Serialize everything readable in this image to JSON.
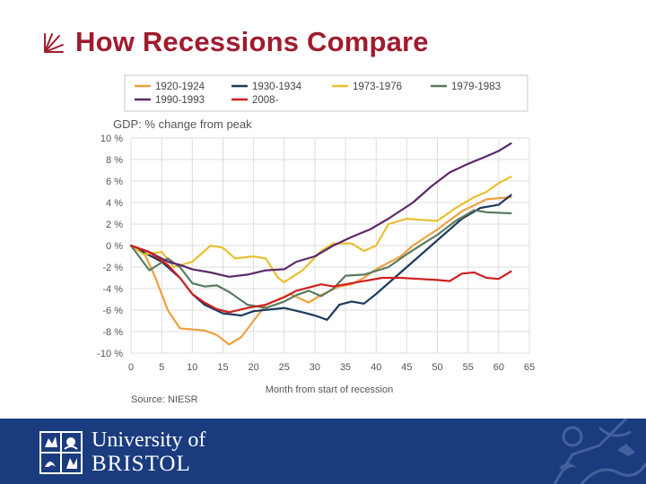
{
  "slide": {
    "title": "How Recessions Compare"
  },
  "chart_data": {
    "type": "line",
    "title": "",
    "ylabel": "GDP: % change from peak",
    "xlabel": "Month from start of recession",
    "source": "Source: NIESR",
    "xlim": [
      0,
      65
    ],
    "ylim": [
      -10,
      10
    ],
    "x_ticks": [
      0,
      5,
      10,
      15,
      20,
      25,
      30,
      35,
      40,
      45,
      50,
      55,
      60,
      65
    ],
    "y_ticks": [
      10,
      8,
      6,
      4,
      2,
      0,
      -2,
      -4,
      -6,
      -8,
      -10
    ],
    "y_tick_labels": [
      "10 %",
      "8 %",
      "6 %",
      "4 %",
      "2 %",
      "0 %",
      "-2 %",
      "-4 %",
      "-6 %",
      "-8 %",
      "-10 %"
    ],
    "grid": true,
    "legend_position": "top",
    "series": [
      {
        "name": "1920-1924",
        "color": "#f0a040",
        "points": [
          [
            0,
            0
          ],
          [
            2,
            -0.5
          ],
          [
            4,
            -3
          ],
          [
            6,
            -6
          ],
          [
            8,
            -7.7
          ],
          [
            12,
            -7.9
          ],
          [
            14,
            -8.3
          ],
          [
            16,
            -9.2
          ],
          [
            18,
            -8.5
          ],
          [
            20,
            -7
          ],
          [
            22,
            -5.5
          ],
          [
            26,
            -4.5
          ],
          [
            29,
            -5.3
          ],
          [
            31,
            -4.6
          ],
          [
            34,
            -3.8
          ],
          [
            36,
            -3.6
          ],
          [
            38,
            -3
          ],
          [
            40,
            -2.2
          ],
          [
            44,
            -1
          ],
          [
            46,
            0
          ],
          [
            50,
            1.5
          ],
          [
            54,
            3.2
          ],
          [
            58,
            4.3
          ],
          [
            62,
            4.5
          ]
        ]
      },
      {
        "name": "1930-1934",
        "color": "#1f3a5f",
        "points": [
          [
            0,
            0
          ],
          [
            5,
            -1.5
          ],
          [
            8,
            -3
          ],
          [
            10,
            -4.5
          ],
          [
            12,
            -5.5
          ],
          [
            15,
            -6.3
          ],
          [
            18,
            -6.5
          ],
          [
            20,
            -6.1
          ],
          [
            25,
            -5.8
          ],
          [
            28,
            -6.2
          ],
          [
            30,
            -6.5
          ],
          [
            32,
            -6.9
          ],
          [
            34,
            -5.5
          ],
          [
            36,
            -5.2
          ],
          [
            38,
            -5.4
          ],
          [
            40,
            -4.5
          ],
          [
            43,
            -3
          ],
          [
            46,
            -1.5
          ],
          [
            50,
            0.5
          ],
          [
            54,
            2.5
          ],
          [
            57,
            3.5
          ],
          [
            60,
            3.8
          ],
          [
            62,
            4.7
          ]
        ]
      },
      {
        "name": "1973-1976",
        "color": "#e8c030",
        "points": [
          [
            0,
            0
          ],
          [
            2,
            -0.8
          ],
          [
            5,
            -0.6
          ],
          [
            7,
            -2
          ],
          [
            10,
            -1.5
          ],
          [
            13,
            0
          ],
          [
            15,
            -0.2
          ],
          [
            17,
            -1.2
          ],
          [
            20,
            -1
          ],
          [
            22,
            -1.2
          ],
          [
            24,
            -3
          ],
          [
            25,
            -3.4
          ],
          [
            28,
            -2.3
          ],
          [
            31,
            -0.5
          ],
          [
            33,
            0.2
          ],
          [
            36,
            0.2
          ],
          [
            38,
            -0.5
          ],
          [
            40,
            0
          ],
          [
            42,
            2
          ],
          [
            45,
            2.5
          ],
          [
            47,
            2.4
          ],
          [
            50,
            2.3
          ],
          [
            53,
            3.5
          ],
          [
            56,
            4.5
          ],
          [
            58,
            5
          ],
          [
            60,
            5.8
          ],
          [
            62,
            6.4
          ]
        ]
      },
      {
        "name": "1979-1983",
        "color": "#5a7a60",
        "points": [
          [
            0,
            0
          ],
          [
            3,
            -2.3
          ],
          [
            6,
            -1.2
          ],
          [
            8,
            -2
          ],
          [
            10,
            -3.5
          ],
          [
            12,
            -3.8
          ],
          [
            14,
            -3.7
          ],
          [
            16,
            -4.3
          ],
          [
            19,
            -5.5
          ],
          [
            22,
            -5.8
          ],
          [
            25,
            -5.2
          ],
          [
            27,
            -4.6
          ],
          [
            29,
            -4.2
          ],
          [
            31,
            -4.7
          ],
          [
            33,
            -4
          ],
          [
            35,
            -2.8
          ],
          [
            38,
            -2.7
          ],
          [
            42,
            -2
          ],
          [
            45,
            -0.8
          ],
          [
            48,
            0.3
          ],
          [
            50,
            1
          ],
          [
            53,
            2.3
          ],
          [
            56,
            3.3
          ],
          [
            58,
            3.1
          ],
          [
            62,
            3
          ]
        ]
      },
      {
        "name": "1990-1993",
        "color": "#5a2a6a",
        "points": [
          [
            0,
            0
          ],
          [
            3,
            -0.6
          ],
          [
            6,
            -1.5
          ],
          [
            8,
            -1.8
          ],
          [
            10,
            -2.2
          ],
          [
            13,
            -2.5
          ],
          [
            16,
            -2.9
          ],
          [
            19,
            -2.7
          ],
          [
            22,
            -2.3
          ],
          [
            25,
            -2.2
          ],
          [
            27,
            -1.5
          ],
          [
            30,
            -1
          ],
          [
            33,
            0
          ],
          [
            36,
            0.8
          ],
          [
            39,
            1.5
          ],
          [
            42,
            2.5
          ],
          [
            46,
            4
          ],
          [
            49,
            5.5
          ],
          [
            52,
            6.8
          ],
          [
            55,
            7.6
          ],
          [
            58,
            8.3
          ],
          [
            60,
            8.8
          ],
          [
            62,
            9.5
          ]
        ]
      },
      {
        "name": "2008-",
        "color": "#d02020",
        "points": [
          [
            0,
            0
          ],
          [
            3,
            -0.6
          ],
          [
            6,
            -1.8
          ],
          [
            8,
            -3
          ],
          [
            10,
            -4.5
          ],
          [
            12,
            -5.3
          ],
          [
            14,
            -5.9
          ],
          [
            16,
            -6.2
          ],
          [
            19,
            -5.8
          ],
          [
            22,
            -5.5
          ],
          [
            25,
            -4.8
          ],
          [
            27,
            -4.2
          ],
          [
            29,
            -3.9
          ],
          [
            31,
            -3.6
          ],
          [
            33,
            -3.8
          ],
          [
            35,
            -3.6
          ],
          [
            38,
            -3.3
          ],
          [
            41,
            -3
          ],
          [
            44,
            -3
          ],
          [
            47,
            -3.1
          ],
          [
            50,
            -3.2
          ],
          [
            52,
            -3.3
          ],
          [
            54,
            -2.6
          ],
          [
            56,
            -2.5
          ],
          [
            58,
            -3
          ],
          [
            60,
            -3.1
          ],
          [
            62,
            -2.4
          ]
        ]
      }
    ]
  }
}
